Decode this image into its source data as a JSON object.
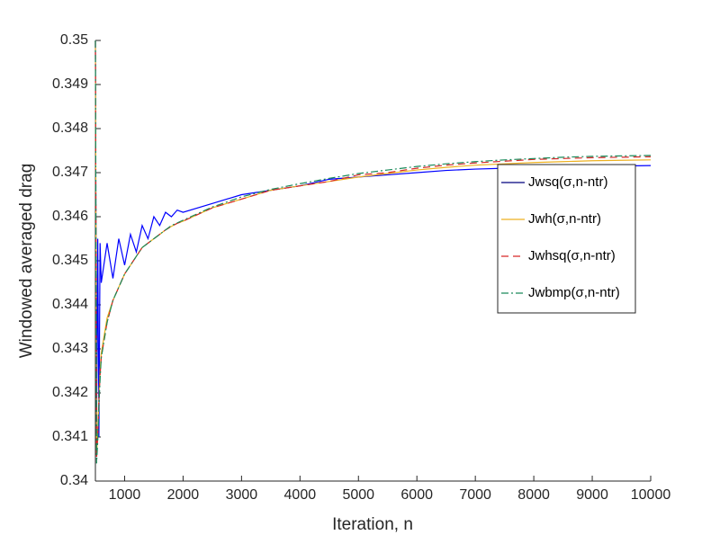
{
  "chart_data": {
    "type": "line",
    "x_label": "Iteration, n",
    "y_label": "Windowed averaged drag",
    "x": [
      500,
      520,
      540,
      560,
      580,
      600,
      700,
      800,
      900,
      1000,
      1100,
      1200,
      1300,
      1400,
      1500,
      1600,
      1700,
      1800,
      1900,
      2000,
      2500,
      3000,
      3500,
      4000,
      4500,
      5000,
      5500,
      6000,
      6500,
      7000,
      7500,
      8000,
      8500,
      9000,
      9500,
      10000
    ],
    "series": [
      {
        "name": "Jwsq(σ,n-ntr)",
        "color": "#0000ff",
        "legend_color": "#00007f",
        "dash": "solid",
        "values": [
          0.35,
          0.3412,
          0.3455,
          0.341,
          0.3454,
          0.3445,
          0.3454,
          0.3446,
          0.3455,
          0.3449,
          0.3456,
          0.3452,
          0.3458,
          0.3455,
          0.346,
          0.3458,
          0.3461,
          0.346,
          0.34615,
          0.3461,
          0.3463,
          0.3465,
          0.3466,
          0.3467,
          0.34685,
          0.3469,
          0.34695,
          0.347,
          0.34705,
          0.34708,
          0.3471,
          0.34712,
          0.34713,
          0.34714,
          0.34715,
          0.34716
        ]
      },
      {
        "name": "Jwh(σ,n-ntr)",
        "color": "#edb120",
        "legend_color": "#edb120",
        "dash": "solid",
        "values": [
          0.35,
          0.3406,
          0.3411,
          0.3419,
          0.3425,
          0.3429,
          0.3437,
          0.3441,
          0.3444,
          0.3447,
          0.3449,
          0.3451,
          0.3453,
          0.3454,
          0.3455,
          0.3456,
          0.3457,
          0.34578,
          0.34585,
          0.3459,
          0.3462,
          0.3464,
          0.3466,
          0.3467,
          0.3468,
          0.3469,
          0.34698,
          0.34706,
          0.34712,
          0.34717,
          0.3472,
          0.34723,
          0.34725,
          0.34727,
          0.34728,
          0.34729
        ]
      },
      {
        "name": "Jwhsq(σ,n-ntr)",
        "color": "#d62728",
        "legend_color": "#d62728",
        "dash": "dashed",
        "values": [
          0.35,
          0.3405,
          0.341,
          0.3418,
          0.3424,
          0.3428,
          0.3436,
          0.3441,
          0.3444,
          0.3447,
          0.3449,
          0.3451,
          0.3453,
          0.3454,
          0.3455,
          0.3456,
          0.3457,
          0.34578,
          0.34585,
          0.3459,
          0.3462,
          0.3464,
          0.3466,
          0.3467,
          0.3468,
          0.34695,
          0.347,
          0.3471,
          0.34717,
          0.34722,
          0.34726,
          0.3473,
          0.34732,
          0.34734,
          0.34735,
          0.34736
        ]
      },
      {
        "name": "Jwbmp(σ,n-ntr)",
        "color": "#1a8a5a",
        "legend_color": "#1a8a5a",
        "dash": "dashdot",
        "values": [
          0.35,
          0.3404,
          0.3409,
          0.3417,
          0.3423,
          0.3428,
          0.3436,
          0.3441,
          0.3444,
          0.3447,
          0.3449,
          0.3451,
          0.3453,
          0.3454,
          0.3455,
          0.3456,
          0.3457,
          0.3458,
          0.34586,
          0.34592,
          0.34622,
          0.34645,
          0.34662,
          0.34675,
          0.34687,
          0.34698,
          0.34706,
          0.34714,
          0.3472,
          0.34725,
          0.34729,
          0.34732,
          0.34735,
          0.34737,
          0.34738,
          0.34739
        ]
      }
    ],
    "xlim": [
      500,
      10000
    ],
    "xticks": [
      1000,
      2000,
      3000,
      4000,
      5000,
      6000,
      7000,
      8000,
      9000,
      10000
    ],
    "ylim": [
      0.34,
      0.35
    ],
    "yticks": [
      0.34,
      0.341,
      0.342,
      0.343,
      0.344,
      0.345,
      0.346,
      0.347,
      0.348,
      0.349,
      0.35
    ],
    "grid": false,
    "legend": "east"
  }
}
